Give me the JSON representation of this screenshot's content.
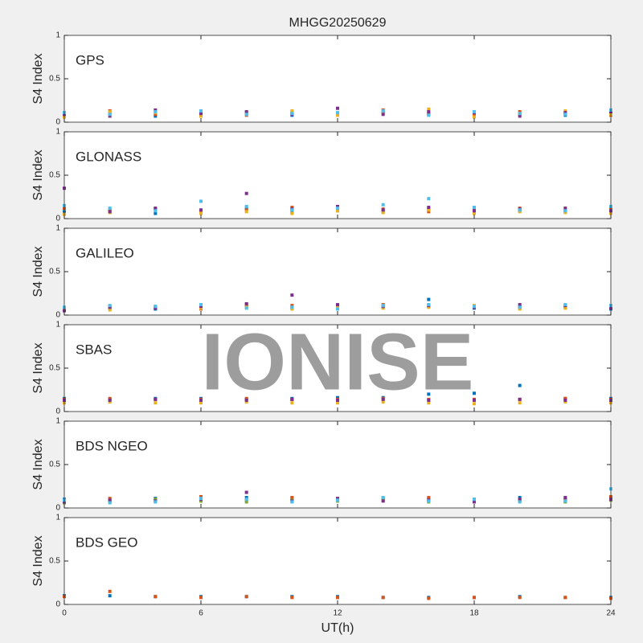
{
  "watermark": "IONISE",
  "chart_data": [
    {
      "type": "scatter",
      "title": "MHGG20250629",
      "label": "GPS",
      "ylabel": "S4 Index",
      "xlim": [
        0,
        24
      ],
      "xticks": [
        0,
        6,
        12,
        18,
        24
      ],
      "ylim": [
        0,
        1
      ],
      "yticks": [
        0,
        0.5,
        1
      ],
      "x": [
        0,
        2,
        4,
        6,
        8,
        10,
        12,
        14,
        16,
        18,
        20,
        22,
        24
      ],
      "series": [
        {
          "color": "#0072bd",
          "values": [
            0.08,
            0.1,
            0.07,
            0.09,
            0.11,
            0.08,
            0.1,
            0.12,
            0.09,
            0.07,
            0.1,
            0.08,
            0.11
          ]
        },
        {
          "color": "#d95319",
          "values": [
            0.1,
            0.13,
            0.09,
            0.12,
            0.08,
            0.11,
            0.09,
            0.14,
            0.1,
            0.09,
            0.12,
            0.1,
            0.08
          ]
        },
        {
          "color": "#edb120",
          "values": [
            0.06,
            0.12,
            0.11,
            0.07,
            0.1,
            0.13,
            0.08,
            0.11,
            0.15,
            0.06,
            0.09,
            0.13,
            0.09
          ]
        },
        {
          "color": "#7e2f8e",
          "values": [
            0.09,
            0.07,
            0.14,
            0.1,
            0.12,
            0.09,
            0.16,
            0.09,
            0.12,
            0.11,
            0.07,
            0.11,
            0.12
          ]
        },
        {
          "color": "#4dbeee",
          "values": [
            0.11,
            0.09,
            0.12,
            0.13,
            0.09,
            0.1,
            0.11,
            0.13,
            0.08,
            0.12,
            0.1,
            0.09,
            0.14
          ]
        }
      ]
    },
    {
      "type": "scatter",
      "label": "GLONASS",
      "ylabel": "S4 Index",
      "xlim": [
        0,
        24
      ],
      "xticks": [
        0,
        6,
        12,
        18,
        24
      ],
      "ylim": [
        0,
        1
      ],
      "yticks": [
        0,
        0.5,
        1
      ],
      "x": [
        0,
        2,
        4,
        6,
        8,
        10,
        12,
        14,
        16,
        18,
        20,
        22,
        24
      ],
      "series": [
        {
          "color": "#0072bd",
          "values": [
            0.08,
            0.1,
            0.06,
            0.09,
            0.12,
            0.07,
            0.1,
            0.08,
            0.11,
            0.07,
            0.09,
            0.08,
            0.1
          ]
        },
        {
          "color": "#d95319",
          "values": [
            0.12,
            0.09,
            0.11,
            0.08,
            0.1,
            0.13,
            0.09,
            0.11,
            0.08,
            0.1,
            0.12,
            0.09,
            0.11
          ]
        },
        {
          "color": "#edb120",
          "values": [
            0.05,
            0.07,
            0.1,
            0.06,
            0.08,
            0.06,
            0.09,
            0.07,
            0.1,
            0.06,
            0.08,
            0.07,
            0.06
          ]
        },
        {
          "color": "#7e2f8e",
          "values": [
            0.35,
            0.08,
            0.12,
            0.1,
            0.29,
            0.11,
            0.14,
            0.1,
            0.13,
            0.09,
            0.11,
            0.12,
            0.09
          ]
        },
        {
          "color": "#4dbeee",
          "values": [
            0.15,
            0.12,
            0.09,
            0.2,
            0.14,
            0.1,
            0.12,
            0.16,
            0.23,
            0.13,
            0.1,
            0.09,
            0.14
          ]
        }
      ]
    },
    {
      "type": "scatter",
      "label": "GALILEO",
      "ylabel": "S4 Index",
      "xlim": [
        0,
        24
      ],
      "xticks": [
        0,
        6,
        12,
        18,
        24
      ],
      "ylim": [
        0,
        1
      ],
      "yticks": [
        0,
        0.5,
        1
      ],
      "x": [
        0,
        2,
        4,
        6,
        8,
        10,
        12,
        14,
        16,
        18,
        20,
        22,
        24
      ],
      "series": [
        {
          "color": "#0072bd",
          "values": [
            0.06,
            0.08,
            0.07,
            0.09,
            0.1,
            0.08,
            0.11,
            0.09,
            0.18,
            0.08,
            0.1,
            0.09,
            0.07
          ]
        },
        {
          "color": "#d95319",
          "values": [
            0.08,
            0.1,
            0.09,
            0.07,
            0.12,
            0.11,
            0.09,
            0.12,
            0.1,
            0.09,
            0.08,
            0.1,
            0.09
          ]
        },
        {
          "color": "#edb120",
          "values": [
            0.07,
            0.06,
            0.1,
            0.08,
            0.09,
            0.07,
            0.1,
            0.08,
            0.09,
            0.11,
            0.07,
            0.08,
            0.1
          ]
        },
        {
          "color": "#7e2f8e",
          "values": [
            0.05,
            0.09,
            0.08,
            0.1,
            0.13,
            0.23,
            0.12,
            0.1,
            0.11,
            0.09,
            0.12,
            0.11,
            0.08
          ]
        },
        {
          "color": "#4dbeee",
          "values": [
            0.09,
            0.11,
            0.1,
            0.12,
            0.08,
            0.09,
            0.07,
            0.11,
            0.12,
            0.1,
            0.09,
            0.12,
            0.11
          ]
        }
      ]
    },
    {
      "type": "scatter",
      "label": "SBAS",
      "ylabel": "S4 Index",
      "xlim": [
        0,
        24
      ],
      "xticks": [
        0,
        6,
        12,
        18,
        24
      ],
      "ylim": [
        0,
        1
      ],
      "yticks": [
        0,
        0.5,
        1
      ],
      "x": [
        0,
        2,
        4,
        6,
        8,
        10,
        12,
        14,
        16,
        18,
        20,
        22,
        24
      ],
      "series": [
        {
          "color": "#0072bd",
          "values": [
            0.15,
            0.14,
            0.15,
            0.15,
            0.14,
            0.15,
            0.16,
            0.16,
            0.2,
            0.21,
            0.3,
            0.15,
            0.15
          ]
        },
        {
          "color": "#d95319",
          "values": [
            0.14,
            0.15,
            0.14,
            0.14,
            0.15,
            0.14,
            0.14,
            0.15,
            0.14,
            0.14,
            0.14,
            0.15,
            0.14
          ]
        },
        {
          "color": "#edb120",
          "values": [
            0.1,
            0.11,
            0.1,
            0.1,
            0.11,
            0.1,
            0.1,
            0.11,
            0.1,
            0.09,
            0.1,
            0.11,
            0.1
          ]
        },
        {
          "color": "#7e2f8e",
          "values": [
            0.13,
            0.13,
            0.14,
            0.13,
            0.13,
            0.14,
            0.13,
            0.14,
            0.13,
            0.13,
            0.14,
            0.13,
            0.13
          ]
        }
      ]
    },
    {
      "type": "scatter",
      "label": "BDS NGEO",
      "ylabel": "S4 Index",
      "xlim": [
        0,
        24
      ],
      "xticks": [
        0,
        6,
        12,
        18,
        24
      ],
      "ylim": [
        0,
        1
      ],
      "yticks": [
        0,
        0.5,
        1
      ],
      "x": [
        0,
        2,
        4,
        6,
        8,
        10,
        12,
        14,
        16,
        18,
        20,
        22,
        24
      ],
      "series": [
        {
          "color": "#0072bd",
          "values": [
            0.1,
            0.08,
            0.11,
            0.09,
            0.12,
            0.1,
            0.09,
            0.11,
            0.1,
            0.08,
            0.12,
            0.09,
            0.11
          ]
        },
        {
          "color": "#d95319",
          "values": [
            0.08,
            0.11,
            0.09,
            0.13,
            0.09,
            0.12,
            0.1,
            0.09,
            0.12,
            0.1,
            0.09,
            0.11,
            0.13
          ]
        },
        {
          "color": "#77ac30",
          "values": [
            0.06,
            0.07,
            0.1,
            0.08,
            0.07,
            0.09,
            0.08,
            0.1,
            0.07,
            0.09,
            0.08,
            0.07,
            0.09
          ]
        },
        {
          "color": "#7e2f8e",
          "values": [
            0.07,
            0.09,
            0.08,
            0.1,
            0.18,
            0.08,
            0.11,
            0.08,
            0.09,
            0.07,
            0.1,
            0.12,
            0.1
          ]
        },
        {
          "color": "#4dbeee",
          "values": [
            0.09,
            0.06,
            0.07,
            0.11,
            0.1,
            0.07,
            0.09,
            0.12,
            0.08,
            0.1,
            0.07,
            0.08,
            0.22
          ]
        }
      ]
    },
    {
      "type": "scatter",
      "label": "BDS GEO",
      "ylabel": "S4 Index",
      "xlabel": "UT(h)",
      "xlim": [
        0,
        24
      ],
      "xticks": [
        0,
        6,
        12,
        18,
        24
      ],
      "ylim": [
        0,
        1
      ],
      "yticks": [
        0,
        0.5,
        1
      ],
      "x": [
        0,
        2,
        4,
        6,
        8,
        10,
        12,
        14,
        16,
        18,
        20,
        22,
        24
      ],
      "series": [
        {
          "color": "#0072bd",
          "values": [
            0.1,
            0.1,
            0.09,
            0.09,
            0.09,
            0.09,
            0.09,
            0.08,
            0.08,
            0.08,
            0.09,
            0.08,
            0.08
          ]
        },
        {
          "color": "#d95319",
          "values": [
            0.09,
            0.15,
            0.09,
            0.08,
            0.09,
            0.08,
            0.08,
            0.08,
            0.07,
            0.08,
            0.08,
            0.08,
            0.07
          ]
        }
      ]
    }
  ]
}
